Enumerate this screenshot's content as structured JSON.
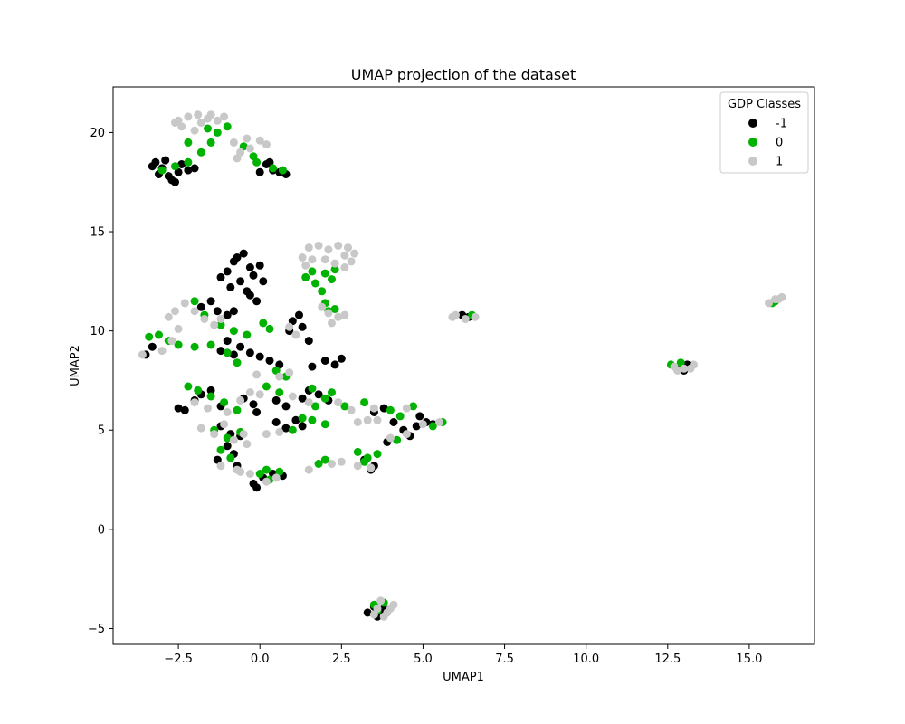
{
  "chart_data": {
    "type": "scatter",
    "title": "UMAP projection of the dataset",
    "xlabel": "UMAP1",
    "ylabel": "UMAP2",
    "xlim": [
      -4.5,
      17.0
    ],
    "ylim": [
      -5.8,
      22.3
    ],
    "x_ticks": [
      -2.5,
      0.0,
      2.5,
      5.0,
      7.5,
      10.0,
      12.5,
      15.0
    ],
    "x_tick_labels": [
      "−2.5",
      "0.0",
      "2.5",
      "5.0",
      "7.5",
      "10.0",
      "12.5",
      "15.0"
    ],
    "y_ticks": [
      -5,
      0,
      5,
      10,
      15,
      20
    ],
    "y_tick_labels": [
      "−5",
      "0",
      "5",
      "10",
      "15",
      "20"
    ],
    "grid": false,
    "legend": {
      "title": "GDP Classes",
      "placement": "top-right",
      "entries": [
        {
          "label": "-1",
          "color": "#000000"
        },
        {
          "label": "0",
          "color": "#00b300"
        },
        {
          "label": "1",
          "color": "#c8c8c8"
        }
      ]
    },
    "series": [
      {
        "name": "-1",
        "color": "#000000",
        "points": [
          [
            -3.2,
            18.5
          ],
          [
            -3.0,
            18.2
          ],
          [
            -2.8,
            17.8
          ],
          [
            -2.6,
            17.5
          ],
          [
            -2.9,
            18.6
          ],
          [
            -3.1,
            17.9
          ],
          [
            -2.5,
            18.0
          ],
          [
            -2.7,
            17.6
          ],
          [
            -3.3,
            18.3
          ],
          [
            -2.4,
            18.4
          ],
          [
            -2.2,
            18.1
          ],
          [
            -2.0,
            18.2
          ],
          [
            0.2,
            18.4
          ],
          [
            0.4,
            18.1
          ],
          [
            0.6,
            18.0
          ],
          [
            0.8,
            17.9
          ],
          [
            0.3,
            18.5
          ],
          [
            0.0,
            18.0
          ],
          [
            -0.8,
            13.5
          ],
          [
            -0.5,
            13.9
          ],
          [
            -0.3,
            13.2
          ],
          [
            -1.0,
            13.0
          ],
          [
            -0.6,
            12.5
          ],
          [
            -0.2,
            12.8
          ],
          [
            0.0,
            13.3
          ],
          [
            -0.9,
            12.2
          ],
          [
            -0.4,
            12.0
          ],
          [
            -0.7,
            13.7
          ],
          [
            0.1,
            12.5
          ],
          [
            -1.2,
            12.7
          ],
          [
            -0.3,
            11.8
          ],
          [
            -0.1,
            11.5
          ],
          [
            -1.5,
            11.5
          ],
          [
            -1.3,
            11.0
          ],
          [
            -1.0,
            10.8
          ],
          [
            -1.8,
            11.2
          ],
          [
            -0.8,
            11.0
          ],
          [
            -1.0,
            9.5
          ],
          [
            -0.6,
            9.2
          ],
          [
            -0.3,
            8.9
          ],
          [
            0.0,
            8.7
          ],
          [
            0.3,
            8.5
          ],
          [
            0.6,
            8.3
          ],
          [
            -0.8,
            8.8
          ],
          [
            -1.2,
            9.0
          ],
          [
            1.0,
            10.5
          ],
          [
            1.3,
            10.2
          ],
          [
            1.2,
            10.8
          ],
          [
            0.9,
            10.0
          ],
          [
            1.5,
            9.5
          ],
          [
            2.0,
            8.5
          ],
          [
            2.3,
            8.3
          ],
          [
            2.5,
            8.6
          ],
          [
            1.6,
            8.2
          ],
          [
            -2.3,
            6.0
          ],
          [
            -2.0,
            6.5
          ],
          [
            -1.5,
            7.0
          ],
          [
            -1.2,
            6.2
          ],
          [
            -2.5,
            6.1
          ],
          [
            -1.8,
            6.8
          ],
          [
            -0.5,
            6.6
          ],
          [
            -0.2,
            6.3
          ],
          [
            0.5,
            6.5
          ],
          [
            0.8,
            6.2
          ],
          [
            -0.1,
            5.9
          ],
          [
            1.5,
            7.0
          ],
          [
            1.8,
            6.8
          ],
          [
            2.1,
            6.5
          ],
          [
            1.3,
            6.6
          ],
          [
            -1.2,
            5.2
          ],
          [
            -0.9,
            4.8
          ],
          [
            -0.6,
            4.7
          ],
          [
            -1.0,
            4.2
          ],
          [
            -0.8,
            3.8
          ],
          [
            -1.3,
            3.5
          ],
          [
            -0.7,
            3.2
          ],
          [
            0.5,
            5.4
          ],
          [
            0.8,
            5.1
          ],
          [
            1.1,
            5.5
          ],
          [
            1.3,
            5.2
          ],
          [
            -0.1,
            2.1
          ],
          [
            0.1,
            2.6
          ],
          [
            0.4,
            2.8
          ],
          [
            0.7,
            2.7
          ],
          [
            -0.2,
            2.3
          ],
          [
            3.5,
            5.9
          ],
          [
            3.8,
            6.1
          ],
          [
            4.1,
            5.4
          ],
          [
            4.4,
            5.0
          ],
          [
            4.6,
            4.7
          ],
          [
            4.9,
            5.7
          ],
          [
            5.1,
            5.4
          ],
          [
            3.9,
            4.4
          ],
          [
            4.8,
            5.2
          ],
          [
            5.3,
            5.3
          ],
          [
            3.2,
            3.5
          ],
          [
            3.5,
            3.2
          ],
          [
            3.4,
            3.0
          ],
          [
            3.3,
            -4.2
          ],
          [
            3.6,
            -4.4
          ],
          [
            3.8,
            -4.0
          ],
          [
            3.5,
            -3.9
          ],
          [
            3.7,
            -4.3
          ],
          [
            12.9,
            8.1
          ],
          [
            13.1,
            8.3
          ],
          [
            13.0,
            8.0
          ],
          [
            13.2,
            8.2
          ],
          [
            6.2,
            10.8
          ],
          [
            6.4,
            10.7
          ],
          [
            -3.5,
            8.8
          ],
          [
            -3.3,
            9.2
          ]
        ]
      },
      {
        "name": "0",
        "color": "#00b300",
        "points": [
          [
            -3.0,
            18.1
          ],
          [
            -2.6,
            18.3
          ],
          [
            -2.2,
            18.5
          ],
          [
            -1.8,
            19.0
          ],
          [
            -1.5,
            19.5
          ],
          [
            -1.3,
            20.0
          ],
          [
            -1.0,
            20.3
          ],
          [
            -2.2,
            19.5
          ],
          [
            -1.6,
            20.2
          ],
          [
            -0.5,
            19.3
          ],
          [
            -0.2,
            18.8
          ],
          [
            0.4,
            18.2
          ],
          [
            -0.1,
            18.5
          ],
          [
            0.7,
            18.1
          ],
          [
            1.4,
            12.7
          ],
          [
            1.7,
            12.4
          ],
          [
            2.0,
            12.9
          ],
          [
            2.2,
            12.6
          ],
          [
            1.9,
            12.0
          ],
          [
            1.6,
            13.0
          ],
          [
            2.3,
            13.1
          ],
          [
            2.0,
            11.4
          ],
          [
            2.3,
            11.1
          ],
          [
            2.1,
            11.0
          ],
          [
            -2.0,
            11.5
          ],
          [
            -1.7,
            10.8
          ],
          [
            -1.2,
            10.3
          ],
          [
            -0.8,
            10.0
          ],
          [
            -0.4,
            9.8
          ],
          [
            0.1,
            10.4
          ],
          [
            0.3,
            10.1
          ],
          [
            -3.4,
            9.7
          ],
          [
            -3.1,
            9.8
          ],
          [
            -2.8,
            9.5
          ],
          [
            -2.5,
            9.3
          ],
          [
            -2.0,
            9.2
          ],
          [
            -1.5,
            9.3
          ],
          [
            -1.0,
            8.9
          ],
          [
            -0.7,
            8.4
          ],
          [
            0.5,
            8.0
          ],
          [
            0.8,
            7.7
          ],
          [
            1.6,
            7.1
          ],
          [
            2.0,
            6.6
          ],
          [
            2.2,
            6.9
          ],
          [
            1.7,
            6.2
          ],
          [
            -2.2,
            7.2
          ],
          [
            -1.9,
            7.0
          ],
          [
            -1.5,
            6.7
          ],
          [
            -1.1,
            6.4
          ],
          [
            -0.7,
            6.0
          ],
          [
            0.2,
            7.2
          ],
          [
            0.6,
            6.9
          ],
          [
            -1.4,
            5.0
          ],
          [
            -1.0,
            4.6
          ],
          [
            -0.6,
            4.9
          ],
          [
            -1.2,
            4.0
          ],
          [
            -0.9,
            3.6
          ],
          [
            1.0,
            5.0
          ],
          [
            1.3,
            5.6
          ],
          [
            1.6,
            5.5
          ],
          [
            2.0,
            5.3
          ],
          [
            0.0,
            2.8
          ],
          [
            0.3,
            2.5
          ],
          [
            0.6,
            2.9
          ],
          [
            0.2,
            3.0
          ],
          [
            3.0,
            3.9
          ],
          [
            3.3,
            3.6
          ],
          [
            3.6,
            3.8
          ],
          [
            3.2,
            3.4
          ],
          [
            1.8,
            3.3
          ],
          [
            2.0,
            3.5
          ],
          [
            4.0,
            6.0
          ],
          [
            4.3,
            5.7
          ],
          [
            4.7,
            6.2
          ],
          [
            5.3,
            5.2
          ],
          [
            5.6,
            5.4
          ],
          [
            4.2,
            4.5
          ],
          [
            3.5,
            -3.8
          ],
          [
            3.8,
            -3.7
          ],
          [
            3.6,
            -4.1
          ],
          [
            12.6,
            8.3
          ],
          [
            12.9,
            8.4
          ],
          [
            15.7,
            11.4
          ],
          [
            15.8,
            11.5
          ],
          [
            6.5,
            10.8
          ],
          [
            3.2,
            6.4
          ],
          [
            2.6,
            6.2
          ]
        ]
      },
      {
        "name": "1",
        "color": "#c8c8c8",
        "points": [
          [
            -2.5,
            20.6
          ],
          [
            -2.2,
            20.8
          ],
          [
            -1.9,
            20.9
          ],
          [
            -1.6,
            20.7
          ],
          [
            -1.3,
            20.6
          ],
          [
            -2.4,
            20.3
          ],
          [
            -1.8,
            20.5
          ],
          [
            -2.0,
            20.1
          ],
          [
            -1.5,
            20.9
          ],
          [
            -1.1,
            20.8
          ],
          [
            -2.6,
            20.5
          ],
          [
            -0.8,
            19.5
          ],
          [
            -0.4,
            19.7
          ],
          [
            0.0,
            19.6
          ],
          [
            0.2,
            19.4
          ],
          [
            -0.3,
            19.2
          ],
          [
            -0.6,
            19.0
          ],
          [
            -0.7,
            18.7
          ],
          [
            1.5,
            14.2
          ],
          [
            1.8,
            14.3
          ],
          [
            2.1,
            14.1
          ],
          [
            2.4,
            14.3
          ],
          [
            2.6,
            13.8
          ],
          [
            2.8,
            13.5
          ],
          [
            1.3,
            13.7
          ],
          [
            1.6,
            13.6
          ],
          [
            2.0,
            13.6
          ],
          [
            2.3,
            13.4
          ],
          [
            2.6,
            13.2
          ],
          [
            2.9,
            13.9
          ],
          [
            1.4,
            13.3
          ],
          [
            2.7,
            14.2
          ],
          [
            2.1,
            10.9
          ],
          [
            2.4,
            10.7
          ],
          [
            2.6,
            10.8
          ],
          [
            2.2,
            10.4
          ],
          [
            1.9,
            11.2
          ],
          [
            -2.6,
            11.0
          ],
          [
            -2.3,
            11.4
          ],
          [
            -2.0,
            11.0
          ],
          [
            -1.7,
            10.6
          ],
          [
            -1.4,
            10.3
          ],
          [
            -2.8,
            10.7
          ],
          [
            -1.2,
            10.6
          ],
          [
            -3.6,
            8.8
          ],
          [
            -3.0,
            9.0
          ],
          [
            -2.7,
            9.5
          ],
          [
            -2.5,
            10.1
          ],
          [
            0.9,
            10.2
          ],
          [
            1.1,
            9.8
          ],
          [
            0.6,
            7.7
          ],
          [
            0.9,
            7.9
          ],
          [
            -0.1,
            7.8
          ],
          [
            -2.0,
            6.4
          ],
          [
            -1.6,
            6.1
          ],
          [
            -1.0,
            5.9
          ],
          [
            -0.6,
            6.5
          ],
          [
            -0.3,
            6.9
          ],
          [
            0.0,
            6.8
          ],
          [
            1.0,
            6.7
          ],
          [
            1.5,
            6.4
          ],
          [
            2.4,
            6.4
          ],
          [
            2.8,
            6.0
          ],
          [
            3.5,
            6.1
          ],
          [
            4.5,
            6.1
          ],
          [
            -1.8,
            5.1
          ],
          [
            -1.4,
            4.8
          ],
          [
            -1.1,
            5.3
          ],
          [
            -0.8,
            4.5
          ],
          [
            -0.5,
            4.8
          ],
          [
            -0.4,
            4.3
          ],
          [
            -1.2,
            3.2
          ],
          [
            -0.7,
            3.0
          ],
          [
            0.2,
            4.8
          ],
          [
            0.6,
            4.9
          ],
          [
            3.0,
            5.4
          ],
          [
            3.3,
            5.5
          ],
          [
            3.6,
            5.5
          ],
          [
            4.0,
            4.6
          ],
          [
            4.5,
            4.8
          ],
          [
            5.0,
            5.3
          ],
          [
            5.5,
            5.4
          ],
          [
            0.2,
            2.4
          ],
          [
            0.5,
            2.6
          ],
          [
            -0.3,
            2.8
          ],
          [
            -0.6,
            2.9
          ],
          [
            1.5,
            3.0
          ],
          [
            2.2,
            3.3
          ],
          [
            2.5,
            3.4
          ],
          [
            3.0,
            3.2
          ],
          [
            3.4,
            3.1
          ],
          [
            3.6,
            -4.0
          ],
          [
            3.9,
            -4.2
          ],
          [
            4.1,
            -3.8
          ],
          [
            3.8,
            -4.4
          ],
          [
            3.5,
            -4.3
          ],
          [
            3.7,
            -3.6
          ],
          [
            4.0,
            -4.0
          ],
          [
            12.7,
            8.2
          ],
          [
            13.0,
            8.1
          ],
          [
            13.3,
            8.3
          ],
          [
            12.8,
            8.0
          ],
          [
            13.2,
            8.1
          ],
          [
            15.6,
            11.4
          ],
          [
            15.9,
            11.6
          ],
          [
            16.0,
            11.7
          ],
          [
            15.8,
            11.6
          ],
          [
            6.0,
            10.8
          ],
          [
            6.3,
            10.6
          ],
          [
            6.6,
            10.7
          ],
          [
            5.9,
            10.7
          ]
        ]
      }
    ]
  }
}
